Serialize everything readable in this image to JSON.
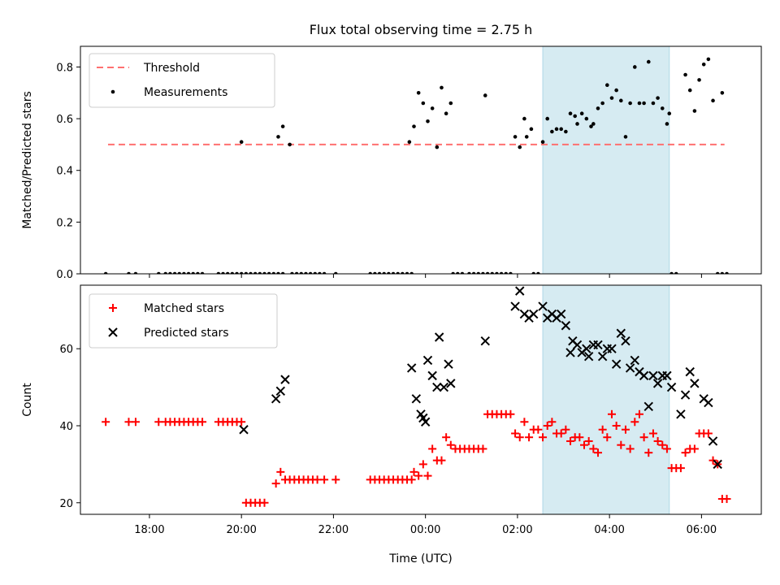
{
  "chart_data": {
    "type": "scatter",
    "title": "Flux total observing time = 2.75 h",
    "xlabel": "Time (UTC)",
    "x_unit": "hours relative to 00:00 UTC",
    "xlim": [
      -7.5,
      7.3
    ],
    "xticks": [
      {
        "value": -6,
        "label": "18:00"
      },
      {
        "value": -4,
        "label": "20:00"
      },
      {
        "value": -2,
        "label": "22:00"
      },
      {
        "value": 0,
        "label": "00:00"
      },
      {
        "value": 2,
        "label": "02:00"
      },
      {
        "value": 4,
        "label": "04:00"
      },
      {
        "value": 6,
        "label": "06:00"
      }
    ],
    "highlight_span": {
      "start": 2.55,
      "end": 5.3,
      "color": "#add8e6"
    },
    "panels": [
      {
        "id": "ratio",
        "ylabel": "Matched/Predicted stars",
        "ylim": [
          0,
          0.88
        ],
        "yticks": [
          {
            "value": 0,
            "label": "0.0"
          },
          {
            "value": 0.2,
            "label": "0.2"
          },
          {
            "value": 0.4,
            "label": "0.4"
          },
          {
            "value": 0.6,
            "label": "0.6"
          },
          {
            "value": 0.8,
            "label": "0.8"
          }
        ],
        "legend": [
          {
            "label": "Threshold",
            "marker": "dashed-line",
            "color": "#ff7070"
          },
          {
            "label": "Measurements",
            "marker": "dot",
            "color": "#000000"
          }
        ],
        "threshold": {
          "value": 0.5,
          "x_from": -6.9,
          "x_to": 6.5
        },
        "series": [
          {
            "name": "Measurements",
            "x": [
              -6.95,
              -6.45,
              -6.3,
              -5.8,
              -5.65,
              -5.55,
              -5.45,
              -5.35,
              -5.25,
              -5.15,
              -5.05,
              -4.95,
              -4.85,
              -4.5,
              -4.4,
              -4.3,
              -4.2,
              -4.1,
              -4.0,
              -3.9,
              -3.8,
              -3.7,
              -3.6,
              -3.5,
              -3.4,
              -3.3,
              -3.2,
              -3.1,
              -2.9,
              -2.8,
              -2.7,
              -2.6,
              -2.5,
              -2.4,
              -2.3,
              -2.2,
              -1.95,
              -1.2,
              -1.1,
              -1.0,
              -0.9,
              -0.8,
              -0.7,
              -0.6,
              -0.5,
              -0.4,
              -0.3,
              0.6,
              0.7,
              0.8,
              0.95,
              1.05,
              1.15,
              1.25,
              1.35,
              1.45,
              1.55,
              1.65,
              1.75,
              1.85,
              2.35,
              2.45,
              5.35,
              5.45,
              6.35,
              6.45,
              6.55,
              -4.0,
              -3.2,
              -3.1,
              -2.95,
              -0.35,
              -0.25,
              -0.15,
              -0.05,
              0.05,
              0.15,
              0.25,
              0.35,
              0.45,
              0.55,
              1.3,
              1.95,
              2.05,
              2.15,
              2.2,
              2.3,
              2.55,
              2.65,
              2.75,
              2.85,
              2.95,
              3.05,
              3.15,
              3.25,
              3.3,
              3.4,
              3.5,
              3.6,
              3.65,
              3.75,
              3.85,
              3.95,
              4.05,
              4.15,
              4.25,
              4.35,
              4.45,
              4.55,
              4.65,
              4.75,
              4.85,
              4.95,
              5.05,
              5.15,
              5.25,
              5.3,
              5.65,
              5.75,
              5.85,
              5.95,
              6.05,
              6.15,
              6.25,
              6.45
            ],
            "y": [
              0,
              0,
              0,
              0,
              0,
              0,
              0,
              0,
              0,
              0,
              0,
              0,
              0,
              0,
              0,
              0,
              0,
              0,
              0,
              0,
              0,
              0,
              0,
              0,
              0,
              0,
              0,
              0,
              0,
              0,
              0,
              0,
              0,
              0,
              0,
              0,
              0,
              0,
              0,
              0,
              0,
              0,
              0,
              0,
              0,
              0,
              0,
              0,
              0,
              0,
              0,
              0,
              0,
              0,
              0,
              0,
              0,
              0,
              0,
              0,
              0,
              0,
              0,
              0,
              0,
              0,
              0,
              0.51,
              0.53,
              0.57,
              0.5,
              0.51,
              0.57,
              0.7,
              0.66,
              0.59,
              0.64,
              0.49,
              0.72,
              0.62,
              0.66,
              0.69,
              0.53,
              0.49,
              0.6,
              0.53,
              0.56,
              0.51,
              0.6,
              0.55,
              0.56,
              0.56,
              0.55,
              0.62,
              0.61,
              0.58,
              0.62,
              0.6,
              0.57,
              0.58,
              0.64,
              0.66,
              0.73,
              0.68,
              0.71,
              0.67,
              0.53,
              0.66,
              0.8,
              0.66,
              0.66,
              0.82,
              0.66,
              0.68,
              0.64,
              0.58,
              0.62,
              0.77,
              0.71,
              0.63,
              0.75,
              0.81,
              0.83,
              0.67,
              0.7
            ]
          }
        ]
      },
      {
        "id": "count",
        "ylabel": "Count",
        "ylim": [
          17,
          76.5
        ],
        "yticks": [
          {
            "value": 20,
            "label": "20"
          },
          {
            "value": 40,
            "label": "40"
          },
          {
            "value": 60,
            "label": "60"
          }
        ],
        "legend": [
          {
            "label": "Matched stars",
            "marker": "plus",
            "color": "#ff0000"
          },
          {
            "label": "Predicted stars",
            "marker": "x",
            "color": "#000000"
          }
        ],
        "series": [
          {
            "name": "Matched stars",
            "marker": "plus",
            "x": [
              -6.95,
              -6.45,
              -6.3,
              -5.8,
              -5.65,
              -5.55,
              -5.45,
              -5.35,
              -5.25,
              -5.15,
              -5.05,
              -4.95,
              -4.85,
              -4.5,
              -4.4,
              -4.3,
              -4.2,
              -4.1,
              -4.0,
              -3.9,
              -3.8,
              -3.7,
              -3.6,
              -3.5,
              -3.25,
              -3.15,
              -3.05,
              -2.95,
              -2.85,
              -2.75,
              -2.65,
              -2.55,
              -2.45,
              -2.35,
              -2.2,
              -1.95,
              -1.2,
              -1.1,
              -1.0,
              -0.9,
              -0.8,
              -0.7,
              -0.6,
              -0.5,
              -0.4,
              -0.3,
              -0.25,
              -0.15,
              -0.05,
              0.05,
              0.15,
              0.25,
              0.35,
              0.45,
              0.55,
              0.65,
              0.75,
              0.85,
              0.95,
              1.05,
              1.15,
              1.25,
              1.35,
              1.45,
              1.55,
              1.65,
              1.75,
              1.85,
              1.95,
              2.05,
              2.15,
              2.25,
              2.35,
              2.45,
              2.55,
              2.65,
              2.75,
              2.85,
              2.95,
              3.05,
              3.15,
              3.25,
              3.35,
              3.45,
              3.55,
              3.65,
              3.75,
              3.85,
              3.95,
              4.05,
              4.15,
              4.25,
              4.35,
              4.45,
              4.55,
              4.65,
              4.75,
              4.85,
              4.95,
              5.05,
              5.15,
              5.25,
              5.35,
              5.45,
              5.55,
              5.65,
              5.75,
              5.85,
              5.95,
              6.05,
              6.15,
              6.25,
              6.35,
              6.45,
              6.55
            ],
            "y": [
              41,
              41,
              41,
              41,
              41,
              41,
              41,
              41,
              41,
              41,
              41,
              41,
              41,
              41,
              41,
              41,
              41,
              41,
              41,
              20,
              20,
              20,
              20,
              20,
              25,
              28,
              26,
              26,
              26,
              26,
              26,
              26,
              26,
              26,
              26,
              26,
              26,
              26,
              26,
              26,
              26,
              26,
              26,
              26,
              26,
              26,
              28,
              27,
              30,
              27,
              34,
              31,
              31,
              37,
              35,
              34,
              34,
              34,
              34,
              34,
              34,
              34,
              43,
              43,
              43,
              43,
              43,
              43,
              38,
              37,
              41,
              37,
              39,
              39,
              37,
              40,
              41,
              38,
              38,
              39,
              36,
              37,
              37,
              35,
              36,
              34,
              33,
              39,
              37,
              43,
              40,
              35,
              39,
              34,
              41,
              43,
              37,
              33,
              38,
              36,
              35,
              34,
              29,
              29,
              29,
              33,
              34,
              34,
              38,
              38,
              38,
              31,
              30,
              21,
              21
            ]
          },
          {
            "name": "Predicted stars",
            "marker": "x",
            "x": [
              -3.95,
              -3.25,
              -3.15,
              -3.05,
              -0.3,
              -0.2,
              -0.1,
              -0.05,
              0.0,
              0.05,
              0.15,
              0.25,
              0.3,
              0.4,
              0.5,
              0.55,
              1.3,
              1.95,
              2.05,
              2.15,
              2.25,
              2.35,
              2.55,
              2.65,
              2.75,
              2.85,
              2.95,
              3.05,
              3.15,
              3.2,
              3.3,
              3.4,
              3.5,
              3.55,
              3.65,
              3.75,
              3.85,
              3.95,
              4.05,
              4.15,
              4.25,
              4.35,
              4.45,
              4.55,
              4.65,
              4.75,
              4.85,
              4.95,
              5.05,
              5.15,
              5.25,
              5.35,
              5.55,
              5.65,
              5.75,
              5.85,
              6.05,
              6.15,
              6.25,
              6.35
            ],
            "y": [
              39,
              47,
              49,
              52,
              55,
              47,
              43,
              42,
              41,
              57,
              53,
              50,
              63,
              50,
              56,
              51,
              62,
              71,
              75,
              69,
              68,
              69,
              71,
              68,
              69,
              68,
              69,
              66,
              59,
              62,
              61,
              59,
              60,
              58,
              61,
              61,
              58,
              60,
              60,
              56,
              64,
              62,
              55,
              57,
              54,
              53,
              45,
              53,
              51,
              53,
              53,
              50,
              43,
              48,
              54,
              51,
              47,
              46,
              36,
              30
            ]
          }
        ]
      }
    ]
  }
}
